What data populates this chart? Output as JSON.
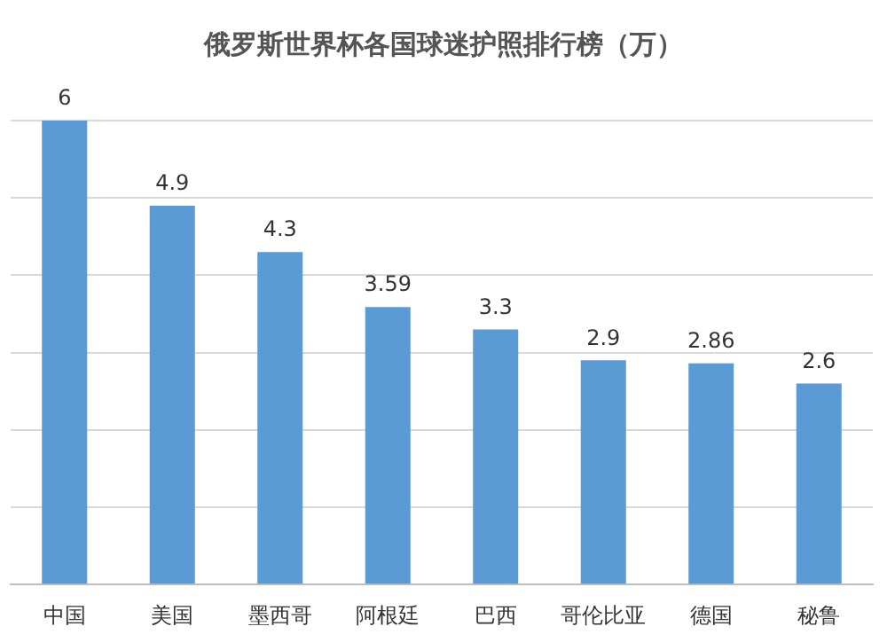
{
  "chart_data": {
    "type": "bar",
    "title": "俄罗斯世界杯各国球迷护照排行榜（万）",
    "categories": [
      "中国",
      "美国",
      "墨西哥",
      "阿根廷",
      "巴西",
      "哥伦比亚",
      "德国",
      "秘鲁"
    ],
    "values": [
      6,
      4.9,
      4.3,
      3.59,
      3.3,
      2.9,
      2.86,
      2.6
    ],
    "color": "#5b9bd5",
    "ylim": [
      0,
      6
    ],
    "yticks": [
      {
        "value": 0,
        "label": null
      },
      {
        "value": 1,
        "label": null
      },
      {
        "value": 2,
        "label": null
      },
      {
        "value": 3,
        "label": null
      },
      {
        "value": 4,
        "label": null
      },
      {
        "value": 5,
        "label": null
      },
      {
        "value": 6,
        "label": null
      }
    ],
    "grid": "y",
    "tick_labels": "x",
    "data_labels": true
  }
}
